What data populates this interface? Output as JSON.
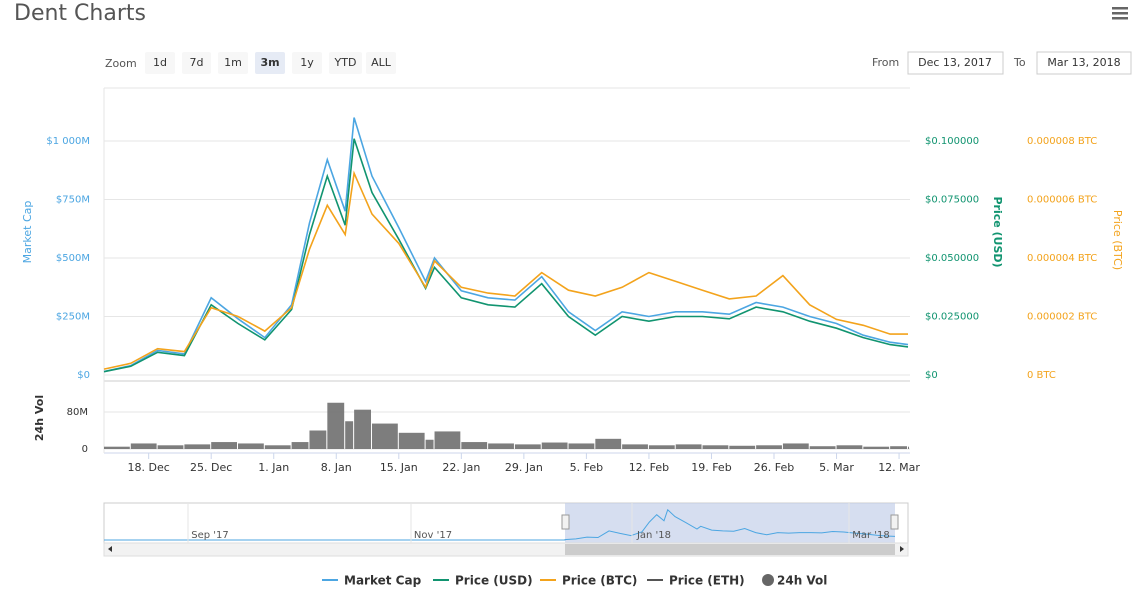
{
  "header": {
    "title": "Dent Charts"
  },
  "controls": {
    "zoom_label": "Zoom",
    "zoom_buttons": [
      "1d",
      "7d",
      "1m",
      "3m",
      "1y",
      "YTD",
      "ALL"
    ],
    "selected": 3,
    "from_label": "From",
    "from": "Dec 13, 2017",
    "to_label": "To",
    "to": "Mar 13, 2018"
  },
  "chart_data": {
    "type": "line",
    "x": [
      0,
      3,
      6,
      9,
      12,
      15,
      18,
      21,
      23,
      25,
      27,
      28,
      30,
      33,
      36,
      37,
      40,
      43,
      46,
      49,
      52,
      55,
      58,
      61,
      64,
      67,
      70,
      73,
      76,
      79,
      82,
      85,
      88,
      90
    ],
    "xlim": [
      0,
      90
    ],
    "xticks": [
      {
        "value": 5,
        "label": "18. Dec"
      },
      {
        "value": 12,
        "label": "25. Dec"
      },
      {
        "value": 19,
        "label": "1. Jan"
      },
      {
        "value": 26,
        "label": "8. Jan"
      },
      {
        "value": 33,
        "label": "15. Jan"
      },
      {
        "value": 40,
        "label": "22. Jan"
      },
      {
        "value": 47,
        "label": "29. Jan"
      },
      {
        "value": 54,
        "label": "5. Feb"
      },
      {
        "value": 61,
        "label": "12. Feb"
      },
      {
        "value": 68,
        "label": "19. Feb"
      },
      {
        "value": 75,
        "label": "26. Feb"
      },
      {
        "value": 82,
        "label": "5. Mar"
      },
      {
        "value": 89,
        "label": "12. Mar"
      }
    ],
    "ylabel": "Market Cap",
    "ylim": [
      0,
      1200000000
    ],
    "yticks": [
      {
        "value": 0,
        "label": "$0"
      },
      {
        "value": 250000000,
        "label": "$250M"
      },
      {
        "value": 500000000,
        "label": "$500M"
      },
      {
        "value": 750000000,
        "label": "$750M"
      },
      {
        "value": 1000000000,
        "label": "$1 000M"
      }
    ],
    "y2label": "Price (USD)",
    "y2lim": [
      0,
      0.12
    ],
    "y2ticks": [
      {
        "value": 0,
        "label": "$0"
      },
      {
        "value": 0.025,
        "label": "$0.025000"
      },
      {
        "value": 0.05,
        "label": "$0.050000"
      },
      {
        "value": 0.075,
        "label": "$0.075000"
      },
      {
        "value": 0.1,
        "label": "$0.100000"
      }
    ],
    "y3label": "Price (BTC)",
    "y3lim": [
      0,
      9.6e-06
    ],
    "y3ticks": [
      {
        "value": 0,
        "label": "0 BTC"
      },
      {
        "value": 2e-06,
        "label": "0.000002 BTC"
      },
      {
        "value": 4e-06,
        "label": "0.000004 BTC"
      },
      {
        "value": 6e-06,
        "label": "0.000006 BTC"
      },
      {
        "value": 8e-06,
        "label": "0.000008 BTC"
      }
    ],
    "vol_label": "24h Vol",
    "vol_ylim": [
      0,
      120000000
    ],
    "vol_yticks": [
      0,
      {
        "value": 80000000,
        "label": "80M"
      }
    ],
    "grid": true,
    "series": [
      {
        "name": "Market Cap",
        "color": "#4ca6e2",
        "axis": "y",
        "values": [
          15000000,
          40000000,
          105000000,
          90000000,
          330000000,
          240000000,
          160000000,
          300000000,
          650000000,
          920000000,
          700000000,
          1100000000,
          850000000,
          630000000,
          400000000,
          500000000,
          360000000,
          330000000,
          320000000,
          420000000,
          270000000,
          190000000,
          270000000,
          250000000,
          270000000,
          270000000,
          260000000,
          310000000,
          290000000,
          250000000,
          220000000,
          170000000,
          140000000,
          130000000
        ]
      },
      {
        "name": "Price (USD)",
        "color": "#119470",
        "axis": "y2",
        "values": [
          0.0014,
          0.0037,
          0.0097,
          0.0083,
          0.03,
          0.022,
          0.015,
          0.028,
          0.06,
          0.085,
          0.064,
          0.101,
          0.078,
          0.058,
          0.037,
          0.046,
          0.033,
          0.03,
          0.029,
          0.039,
          0.025,
          0.017,
          0.025,
          0.023,
          0.025,
          0.025,
          0.024,
          0.029,
          0.027,
          0.023,
          0.02,
          0.016,
          0.013,
          0.012
        ]
      },
      {
        "name": "Price (BTC)",
        "color": "#f3a31c",
        "axis": "y3",
        "values": [
          2e-07,
          4e-07,
          9e-07,
          8e-07,
          2.3e-06,
          2e-06,
          1.5e-06,
          2.3e-06,
          4.3e-06,
          5.8e-06,
          4.8e-06,
          6.9e-06,
          5.5e-06,
          4.5e-06,
          3e-06,
          3.9e-06,
          3e-06,
          2.8e-06,
          2.7e-06,
          3.5e-06,
          2.9e-06,
          2.7e-06,
          3e-06,
          3.5e-06,
          3.2e-06,
          2.9e-06,
          2.6e-06,
          2.7e-06,
          3.4e-06,
          2.4e-06,
          1.9e-06,
          1.7e-06,
          1.4e-06,
          1.4e-06
        ]
      },
      {
        "name": "Price (ETH)",
        "color": "#555555",
        "axis": "y"
      },
      {
        "name": "24h Vol",
        "color": "#666666",
        "axis": "vol",
        "values": [
          5000000,
          12000000,
          8000000,
          10000000,
          15000000,
          12000000,
          8000000,
          15000000,
          40000000,
          100000000,
          60000000,
          85000000,
          55000000,
          35000000,
          20000000,
          38000000,
          15000000,
          12000000,
          10000000,
          14000000,
          12000000,
          22000000,
          10000000,
          8000000,
          10000000,
          8000000,
          7000000,
          8000000,
          12000000,
          6000000,
          8000000,
          5000000,
          6000000,
          5000000
        ]
      }
    ],
    "navigator_labels": [
      "Sep '17",
      "Nov '17",
      "Jan '18",
      "Mar '18"
    ]
  }
}
